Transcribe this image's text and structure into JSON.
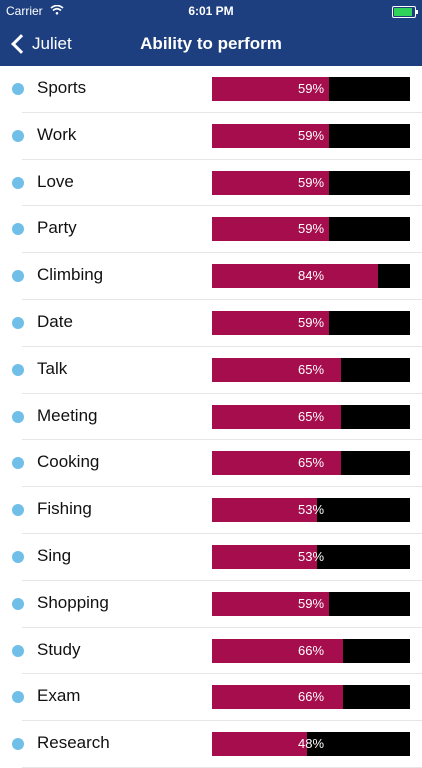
{
  "status": {
    "carrier": "Carrier",
    "time": "6:01 PM"
  },
  "nav": {
    "back_label": "Juliet",
    "title": "Ability to perform"
  },
  "colors": {
    "bar_fill": "#a50d4c",
    "bar_track": "#000000",
    "dot": "#6fbfe9",
    "nav_bg": "#1d3f7f"
  },
  "items": [
    {
      "label": "Sports",
      "value": 59,
      "pct_text": "59%"
    },
    {
      "label": "Work",
      "value": 59,
      "pct_text": "59%"
    },
    {
      "label": "Love",
      "value": 59,
      "pct_text": "59%"
    },
    {
      "label": "Party",
      "value": 59,
      "pct_text": "59%"
    },
    {
      "label": "Climbing",
      "value": 84,
      "pct_text": "84%"
    },
    {
      "label": "Date",
      "value": 59,
      "pct_text": "59%"
    },
    {
      "label": "Talk",
      "value": 65,
      "pct_text": "65%"
    },
    {
      "label": "Meeting",
      "value": 65,
      "pct_text": "65%"
    },
    {
      "label": "Cooking",
      "value": 65,
      "pct_text": "65%"
    },
    {
      "label": "Fishing",
      "value": 53,
      "pct_text": "53%"
    },
    {
      "label": "Sing",
      "value": 53,
      "pct_text": "53%"
    },
    {
      "label": "Shopping",
      "value": 59,
      "pct_text": "59%"
    },
    {
      "label": "Study",
      "value": 66,
      "pct_text": "66%"
    },
    {
      "label": "Exam",
      "value": 66,
      "pct_text": "66%"
    },
    {
      "label": "Research",
      "value": 48,
      "pct_text": "48%"
    }
  ]
}
